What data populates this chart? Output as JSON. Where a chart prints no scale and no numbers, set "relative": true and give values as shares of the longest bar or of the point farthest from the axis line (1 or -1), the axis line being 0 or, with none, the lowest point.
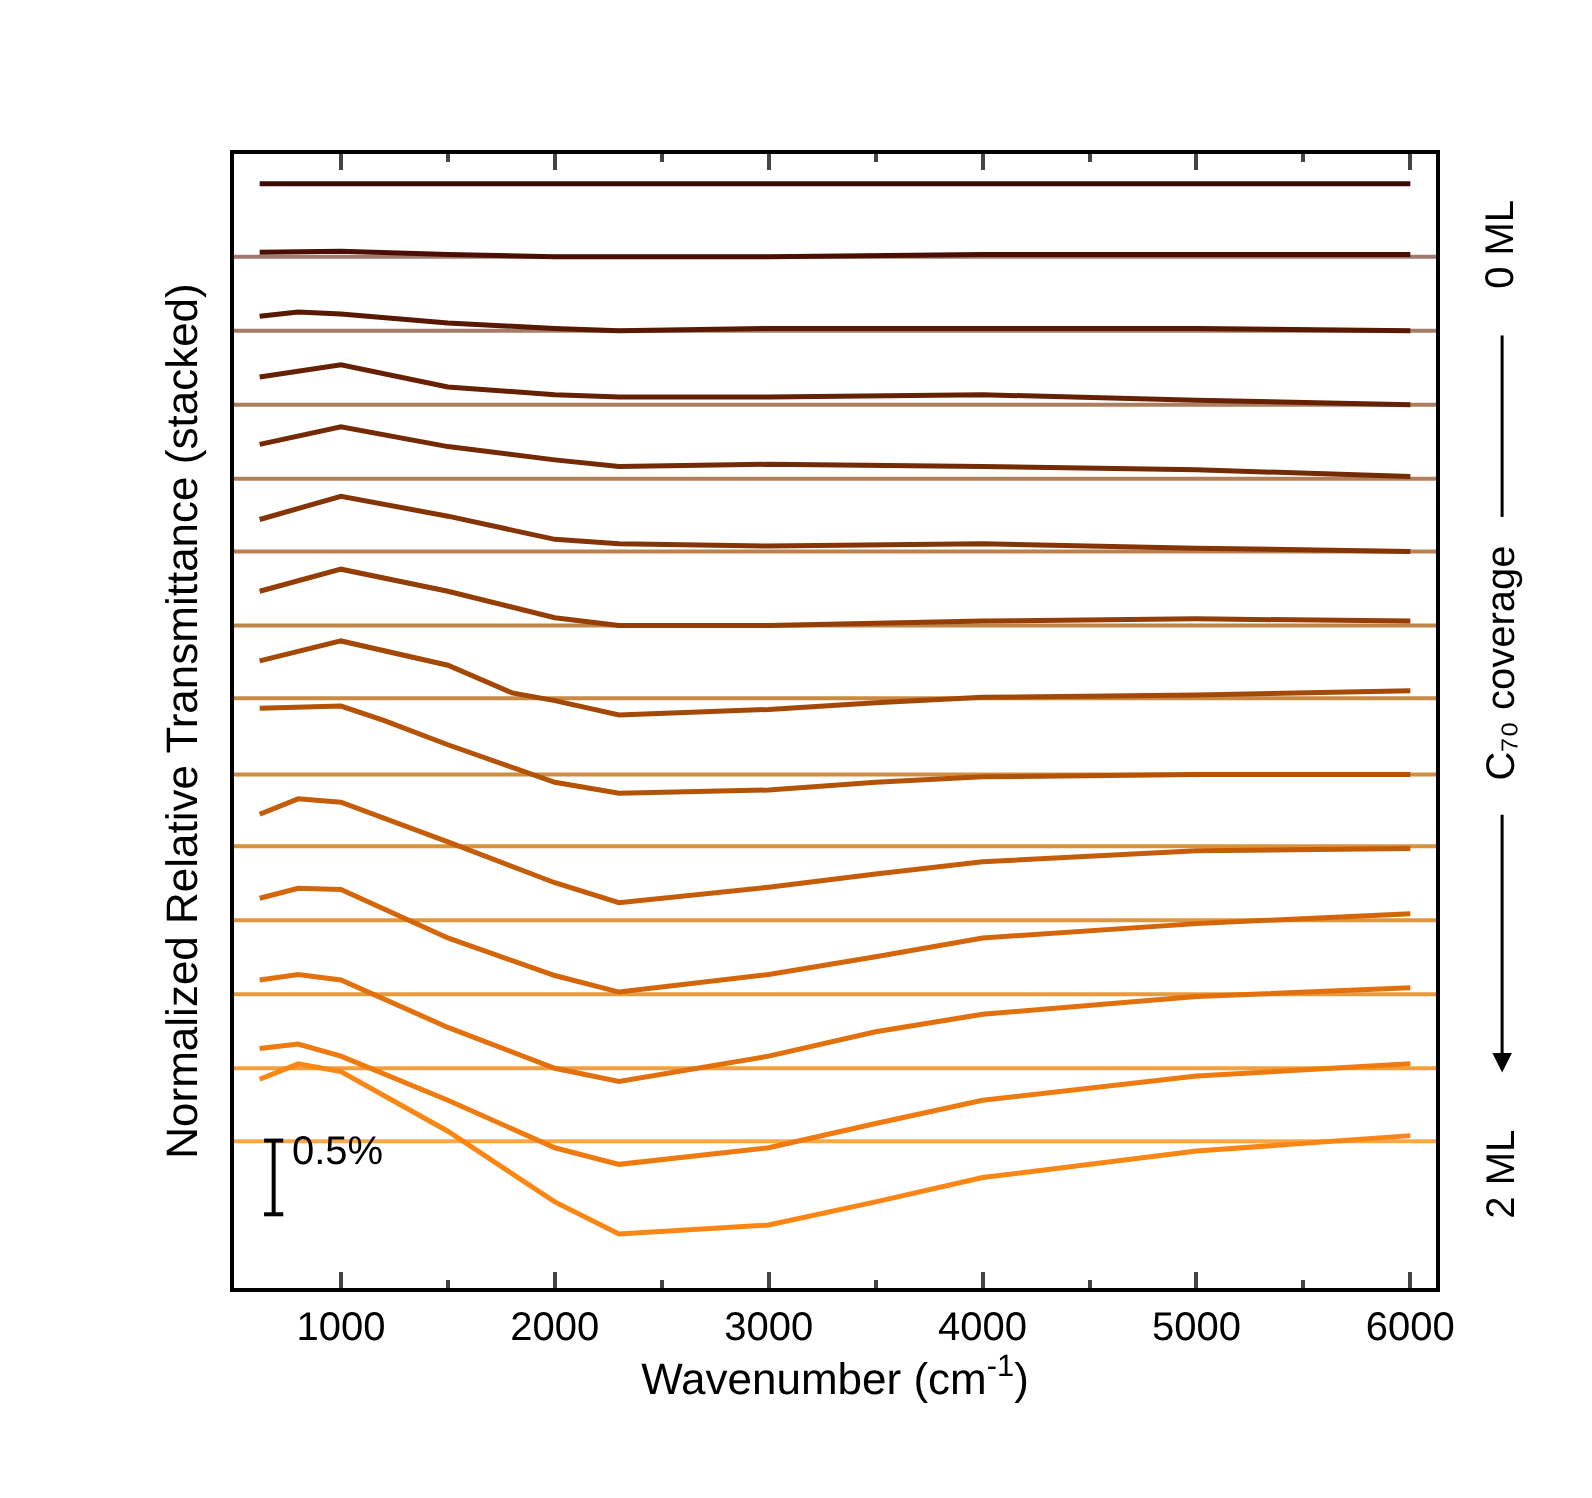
{
  "chart_data": {
    "type": "line",
    "relative": true,
    "xlabel": "Wavenumber (cm$^{-1}$)",
    "ylabel": "Normalized Relative Transmittance (stacked)",
    "xlim": [
      500,
      6120
    ],
    "xticks": [
      1000,
      2000,
      3000,
      4000,
      5000,
      6000
    ],
    "annotations": [
      "0.5%",
      "0 ML",
      "C₇₀ coverage",
      "2 ML"
    ],
    "series": [
      {
        "color": "#3d0a05",
        "x": [
          620,
          2000,
          4000,
          6000
        ],
        "values": [
          1.0,
          1.0,
          1.0,
          1.0
        ]
      },
      {
        "color": "#4a0f02",
        "x": [
          620,
          1000,
          1500,
          2000,
          3000,
          4000,
          5000,
          6000
        ],
        "values": [
          0.938,
          0.939,
          0.936,
          0.934,
          0.934,
          0.936,
          0.936,
          0.936
        ]
      },
      {
        "color": "#581802",
        "x": [
          620,
          800,
          1000,
          1500,
          2000,
          2300,
          3000,
          4000,
          5000,
          6000
        ],
        "values": [
          0.88,
          0.884,
          0.882,
          0.874,
          0.869,
          0.867,
          0.869,
          0.869,
          0.869,
          0.867
        ]
      },
      {
        "color": "#662003",
        "x": [
          620,
          1000,
          1500,
          2000,
          2300,
          3000,
          4000,
          5000,
          6000
        ],
        "values": [
          0.825,
          0.836,
          0.816,
          0.809,
          0.807,
          0.807,
          0.809,
          0.804,
          0.8
        ]
      },
      {
        "color": "#742a04",
        "x": [
          620,
          1000,
          1500,
          2000,
          2300,
          3000,
          4000,
          5000,
          6000
        ],
        "values": [
          0.764,
          0.78,
          0.762,
          0.75,
          0.744,
          0.746,
          0.744,
          0.741,
          0.735
        ]
      },
      {
        "color": "#843405",
        "x": [
          620,
          1000,
          1500,
          2000,
          2300,
          3000,
          4000,
          5000,
          6000
        ],
        "values": [
          0.696,
          0.717,
          0.699,
          0.678,
          0.674,
          0.672,
          0.674,
          0.67,
          0.667
        ]
      },
      {
        "color": "#943e05",
        "x": [
          620,
          1000,
          1500,
          2000,
          2300,
          3000,
          4000,
          5000,
          6000
        ],
        "values": [
          0.631,
          0.651,
          0.631,
          0.607,
          0.6,
          0.6,
          0.604,
          0.606,
          0.604
        ]
      },
      {
        "color": "#a44806",
        "x": [
          620,
          1000,
          1500,
          1800,
          2000,
          2300,
          3000,
          3500,
          4000,
          5000,
          6000
        ],
        "values": [
          0.568,
          0.586,
          0.564,
          0.539,
          0.532,
          0.519,
          0.524,
          0.53,
          0.535,
          0.537,
          0.541
        ]
      },
      {
        "color": "#b45206",
        "x": [
          620,
          1000,
          1200,
          1500,
          2000,
          2300,
          3000,
          3500,
          4000,
          5000,
          6000
        ],
        "values": [
          0.525,
          0.527,
          0.514,
          0.492,
          0.458,
          0.448,
          0.451,
          0.458,
          0.463,
          0.465,
          0.465
        ]
      },
      {
        "color": "#c45c08",
        "x": [
          620,
          800,
          1000,
          1500,
          2000,
          2300,
          3000,
          3500,
          4000,
          5000,
          6000
        ],
        "values": [
          0.429,
          0.443,
          0.44,
          0.404,
          0.367,
          0.349,
          0.363,
          0.375,
          0.386,
          0.396,
          0.398
        ]
      },
      {
        "color": "#d46609",
        "x": [
          620,
          800,
          1000,
          1500,
          2000,
          2300,
          3000,
          3500,
          4000,
          5000,
          6000
        ],
        "values": [
          0.353,
          0.362,
          0.361,
          0.317,
          0.283,
          0.268,
          0.284,
          0.3,
          0.317,
          0.33,
          0.339
        ]
      },
      {
        "color": "#e2700c",
        "x": [
          620,
          800,
          1000,
          1500,
          2000,
          2300,
          3000,
          3500,
          4000,
          5000,
          6000
        ],
        "values": [
          0.279,
          0.284,
          0.279,
          0.236,
          0.199,
          0.187,
          0.21,
          0.232,
          0.248,
          0.264,
          0.272
        ]
      },
      {
        "color": "#ef7a0f",
        "x": [
          620,
          800,
          1000,
          1500,
          2000,
          2300,
          3000,
          3500,
          4000,
          5000,
          6000
        ],
        "values": [
          0.217,
          0.221,
          0.21,
          0.17,
          0.127,
          0.112,
          0.127,
          0.149,
          0.17,
          0.192,
          0.203
        ]
      },
      {
        "color": "#fb8614",
        "x": [
          620,
          800,
          1000,
          1500,
          2000,
          2300,
          3000,
          3500,
          4000,
          5000,
          6000
        ],
        "values": [
          0.189,
          0.203,
          0.196,
          0.142,
          0.078,
          0.049,
          0.057,
          0.078,
          0.1,
          0.124,
          0.138
        ]
      }
    ],
    "ref_lines": [
      {
        "axis": "y",
        "value": 0.934,
        "color": "#a07a70"
      },
      {
        "axis": "y",
        "value": 0.867,
        "color": "#a67c68"
      },
      {
        "axis": "y",
        "value": 0.8,
        "color": "#ac7e60"
      },
      {
        "axis": "y",
        "value": 0.733,
        "color": "#b28058"
      },
      {
        "axis": "y",
        "value": 0.667,
        "color": "#b88250"
      },
      {
        "axis": "y",
        "value": 0.6,
        "color": "#c08648"
      },
      {
        "axis": "y",
        "value": 0.534,
        "color": "#c88a44"
      },
      {
        "axis": "y",
        "value": 0.465,
        "color": "#d08e40"
      },
      {
        "axis": "y",
        "value": 0.4,
        "color": "#d8923e"
      },
      {
        "axis": "y",
        "value": 0.333,
        "color": "#e0963c"
      },
      {
        "axis": "y",
        "value": 0.266,
        "color": "#e89a3c"
      },
      {
        "axis": "y",
        "value": 0.199,
        "color": "#f0a03e"
      },
      {
        "axis": "y",
        "value": 0.133,
        "color": "#f8a848"
      }
    ]
  }
}
